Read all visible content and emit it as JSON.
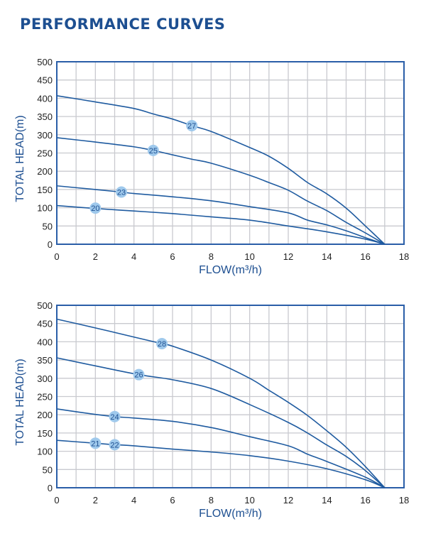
{
  "page": {
    "title": "PERFORMANCE CURVES"
  },
  "colors": {
    "title": "#1d4f91",
    "curve": "#1f5ba0",
    "frame": "#2a5ea8",
    "grid": "#c9cacf",
    "label_fill": "#9fc9ec"
  },
  "chart_data": [
    {
      "type": "line",
      "xlabel": "FLOW(m³/h)",
      "ylabel": "TOTAL HEAD(m)",
      "xlim": [
        0,
        18
      ],
      "ylim": [
        0,
        500
      ],
      "xticks": [
        "0",
        "2",
        "4",
        "6",
        "8",
        "10",
        "12",
        "14",
        "16",
        "18"
      ],
      "yticks": [
        "0",
        "50",
        "100",
        "150",
        "200",
        "250",
        "300",
        "350",
        "400",
        "450",
        "500"
      ],
      "grid": true,
      "series": [
        {
          "name": "27",
          "label_at": [
            7,
            325
          ],
          "x": [
            0,
            2,
            4,
            5,
            6,
            7,
            8,
            10,
            11,
            12,
            13,
            14,
            15,
            16,
            17
          ],
          "y": [
            407,
            390,
            372,
            357,
            343,
            325,
            309,
            265,
            241,
            208,
            169,
            138,
            99,
            50,
            0
          ]
        },
        {
          "name": "25",
          "label_at": [
            5,
            257
          ],
          "x": [
            0,
            2,
            4,
            5,
            6,
            7,
            8,
            10,
            11,
            12,
            13,
            14,
            15,
            16,
            17
          ],
          "y": [
            292,
            280,
            267,
            257,
            245,
            233,
            222,
            189,
            169,
            148,
            118,
            92,
            60,
            31,
            0
          ]
        },
        {
          "name": "23",
          "label_at": [
            3.35,
            143
          ],
          "x": [
            0,
            2,
            3.35,
            4,
            6,
            8,
            10,
            12,
            13,
            14,
            15,
            16,
            17
          ],
          "y": [
            160,
            150,
            143,
            139,
            130,
            119,
            103,
            86,
            66,
            53,
            37,
            18,
            0
          ]
        },
        {
          "name": "20",
          "label_at": [
            2,
            99
          ],
          "x": [
            0,
            2,
            4,
            6,
            8,
            10,
            12,
            14,
            16,
            17
          ],
          "y": [
            106,
            98,
            91,
            84,
            75,
            66,
            50,
            34,
            14,
            0
          ]
        }
      ]
    },
    {
      "type": "line",
      "xlabel": "FLOW(m³/h)",
      "ylabel": "TOTAL HEAD(m)",
      "xlim": [
        0,
        18
      ],
      "ylim": [
        0,
        500
      ],
      "xticks": [
        "0",
        "2",
        "4",
        "6",
        "8",
        "10",
        "12",
        "14",
        "16",
        "18"
      ],
      "yticks": [
        "0",
        "50",
        "100",
        "150",
        "200",
        "250",
        "300",
        "350",
        "400",
        "450",
        "500"
      ],
      "grid": true,
      "series": [
        {
          "name": "28",
          "label_at": [
            5.45,
            395
          ],
          "x": [
            0,
            2,
            4,
            5.45,
            6,
            8,
            10,
            11,
            12,
            13,
            14,
            15,
            16,
            17
          ],
          "y": [
            462,
            438,
            413,
            395,
            388,
            350,
            300,
            267,
            234,
            198,
            156,
            111,
            58,
            0
          ]
        },
        {
          "name": "26",
          "label_at": [
            4.25,
            310
          ],
          "x": [
            0,
            2,
            4.25,
            6,
            8,
            10,
            12,
            13,
            14,
            15,
            16,
            17
          ],
          "y": [
            356,
            334,
            310,
            296,
            272,
            228,
            179,
            150,
            117,
            86,
            47,
            0
          ]
        },
        {
          "name": "24",
          "label_at": [
            3,
            195
          ],
          "x": [
            0,
            2,
            3,
            4,
            6,
            8,
            10,
            12,
            13,
            14,
            16,
            17
          ],
          "y": [
            216,
            201,
            195,
            191,
            182,
            165,
            140,
            115,
            92,
            72,
            29,
            0
          ]
        },
        {
          "name": "21",
          "label_at": [
            2,
            122
          ],
          "x": [
            0,
            2,
            3,
            4,
            6,
            8,
            10,
            12,
            14,
            16,
            17
          ],
          "y": [
            130,
            122,
            118,
            115,
            106,
            98,
            88,
            73,
            52,
            22,
            0
          ]
        },
        {
          "name": "22",
          "label_at": [
            3,
            118
          ],
          "x": [],
          "y": []
        }
      ]
    }
  ]
}
